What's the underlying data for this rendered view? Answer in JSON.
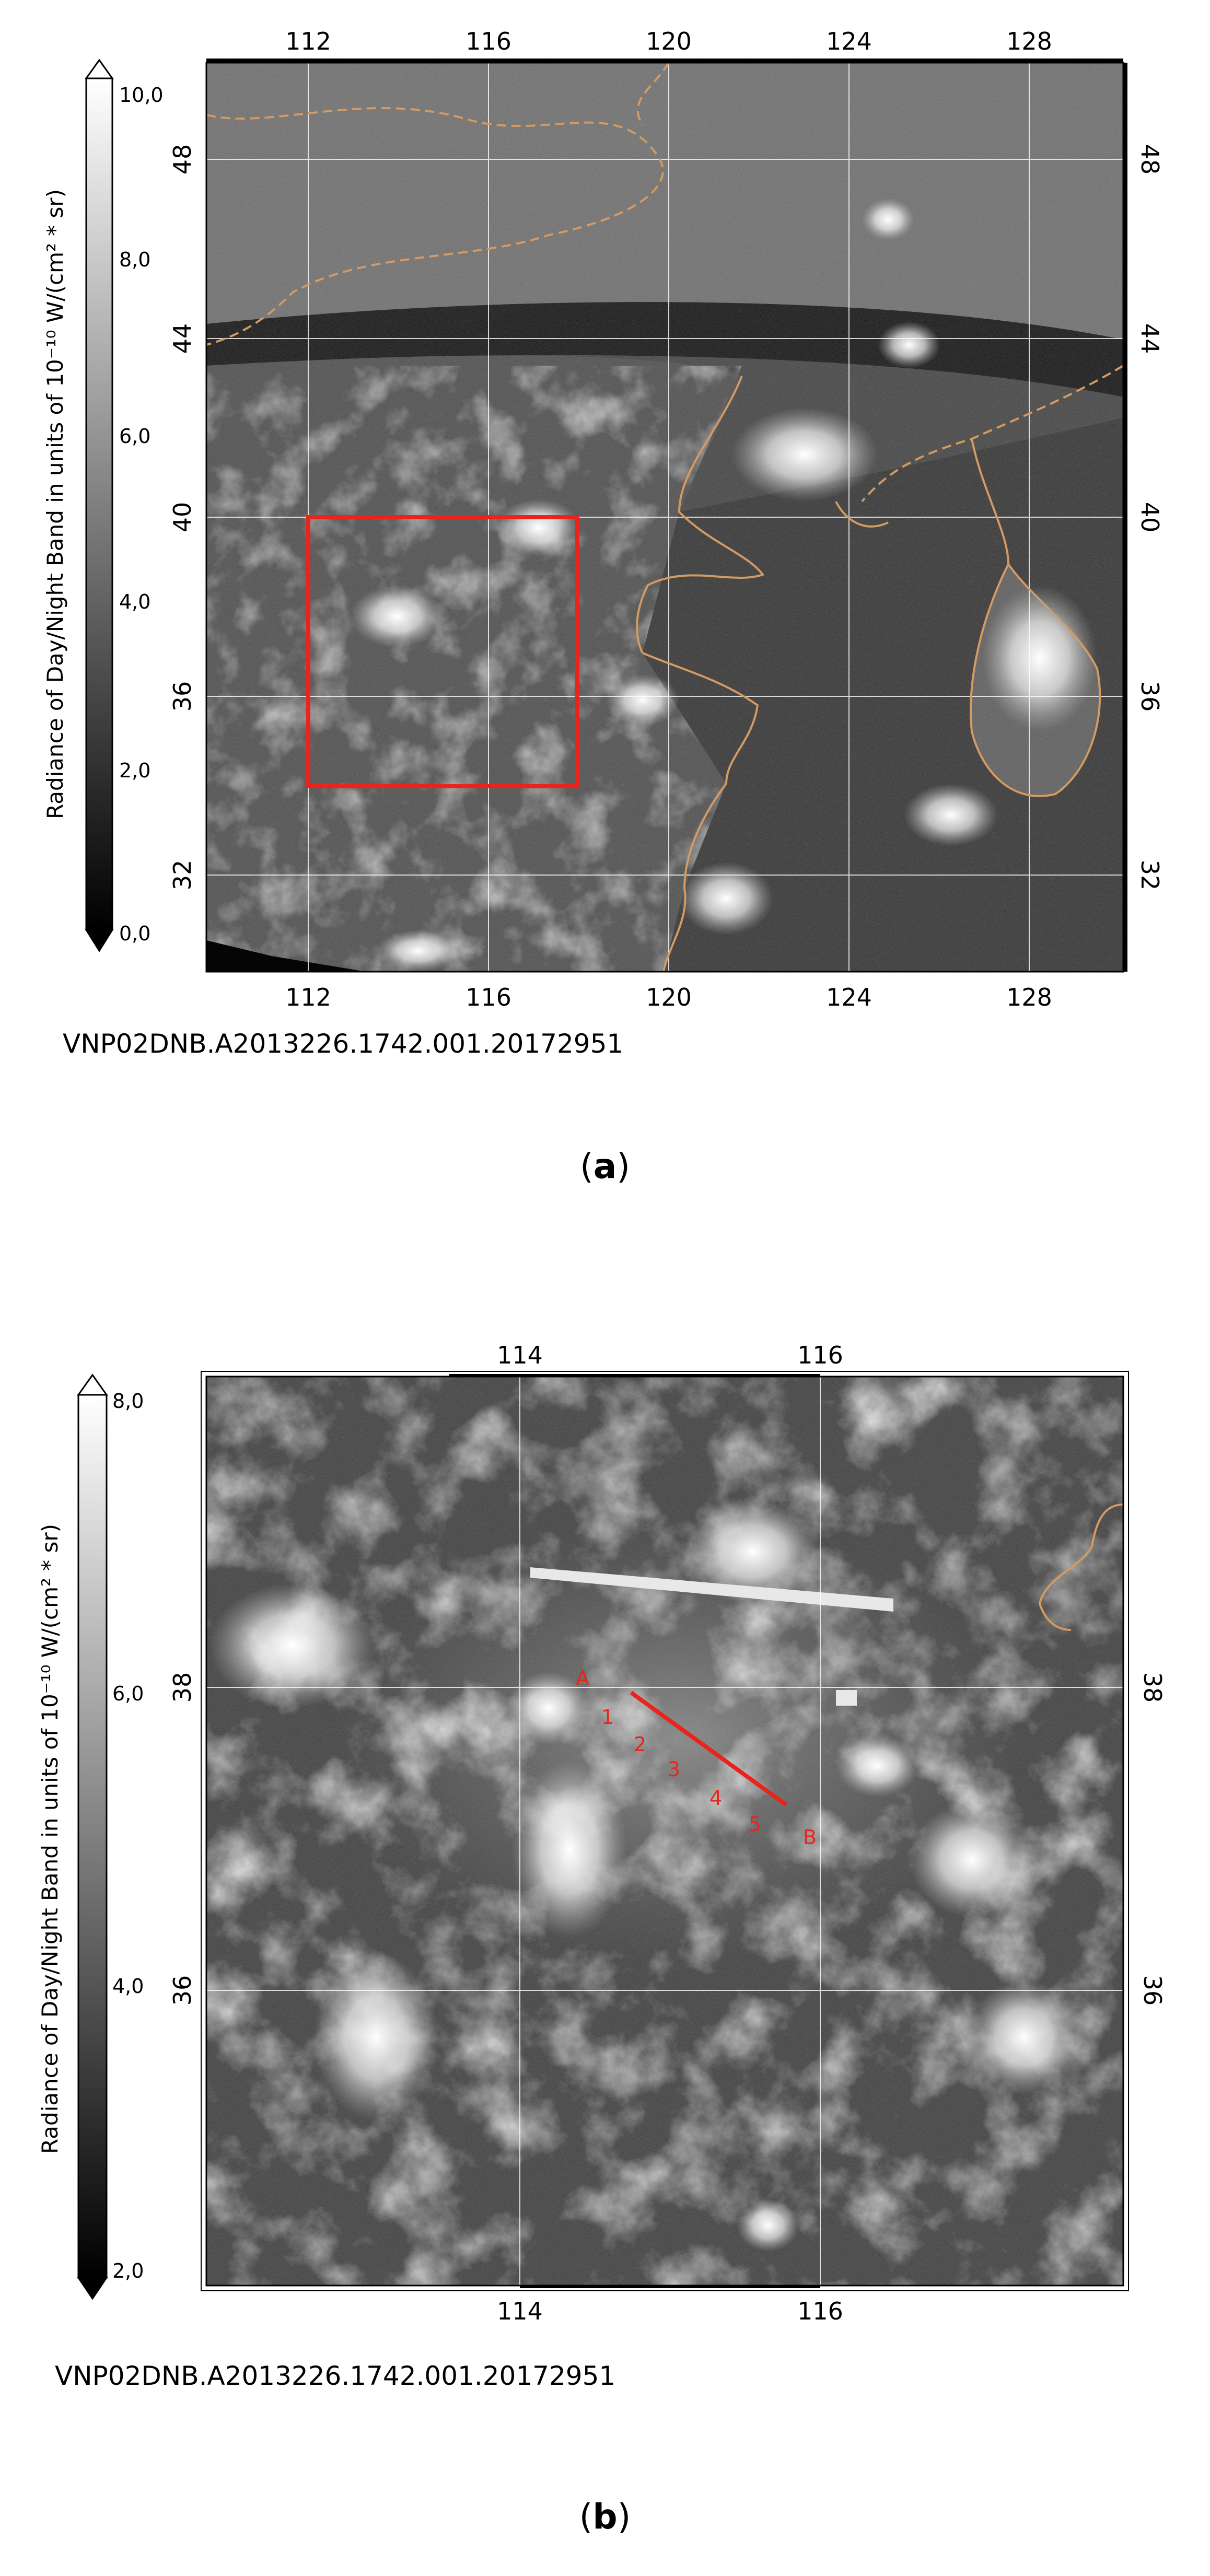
{
  "panel_a": {
    "caption": "(a)",
    "caption_bold": "a",
    "colorbar_title": "Radiance of Day/Night Band in units of 10⁻¹⁰ W/(cm² * sr)",
    "colorbar_ticks": [
      "10,0",
      "8,0",
      "6,0",
      "4,0",
      "2,0",
      "0,0"
    ],
    "granule_id": "VNP02DNB.A2013226.1742.001.20172951",
    "lon_ticks": [
      "112",
      "116",
      "120",
      "124",
      "128"
    ],
    "lat_ticks": [
      "48",
      "44",
      "40",
      "36",
      "32"
    ],
    "inset_box": {
      "lon_min": 112,
      "lon_max": 118,
      "lat_min": 34,
      "lat_max": 40,
      "color": "#e8241c"
    },
    "border_color": "#d39a63"
  },
  "panel_b": {
    "caption": "(b)",
    "caption_bold": "b",
    "colorbar_title": "Radiance of Day/Night Band in units of 10⁻¹⁰ W/(cm² * sr)",
    "colorbar_ticks": [
      "8,0",
      "6,0",
      "4,0",
      "2,0"
    ],
    "granule_id": "VNP02DNB.A2013226.1742.001.20172951",
    "lon_ticks": [
      "114",
      "116"
    ],
    "lat_ticks": [
      "38",
      "36"
    ],
    "transect": {
      "color": "#e8241c",
      "start_label": "A",
      "end_label": "B",
      "point_labels": [
        "1",
        "2",
        "3",
        "4",
        "5"
      ]
    }
  }
}
